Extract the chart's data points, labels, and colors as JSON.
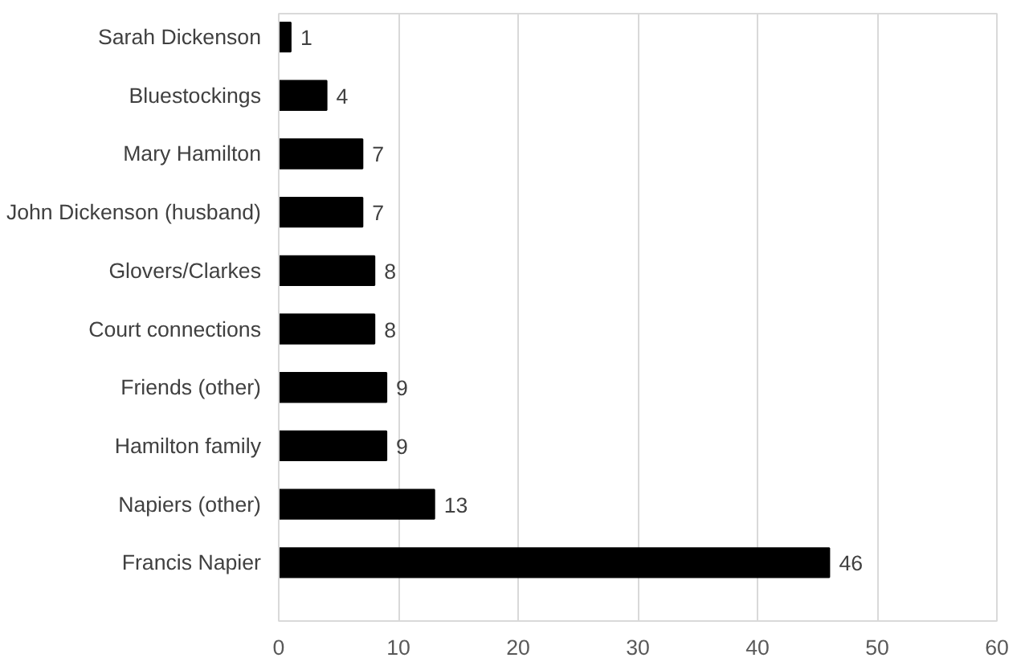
{
  "chart_data": {
    "type": "bar",
    "orientation": "horizontal",
    "categories": [
      "Sarah Dickenson",
      "Bluestockings",
      "Mary Hamilton",
      "John Dickenson (husband)",
      "Glovers/Clarkes",
      "Court connections",
      "Friends (other)",
      "Hamilton family",
      "Napiers (other)",
      "Francis Napier"
    ],
    "values": [
      1,
      4,
      7,
      7,
      8,
      8,
      9,
      9,
      13,
      46
    ],
    "color": "#000000",
    "xlim": [
      0,
      60
    ],
    "xticks": [
      0,
      10,
      20,
      30,
      40,
      50,
      60
    ],
    "grid": "x",
    "data_labels": true
  }
}
